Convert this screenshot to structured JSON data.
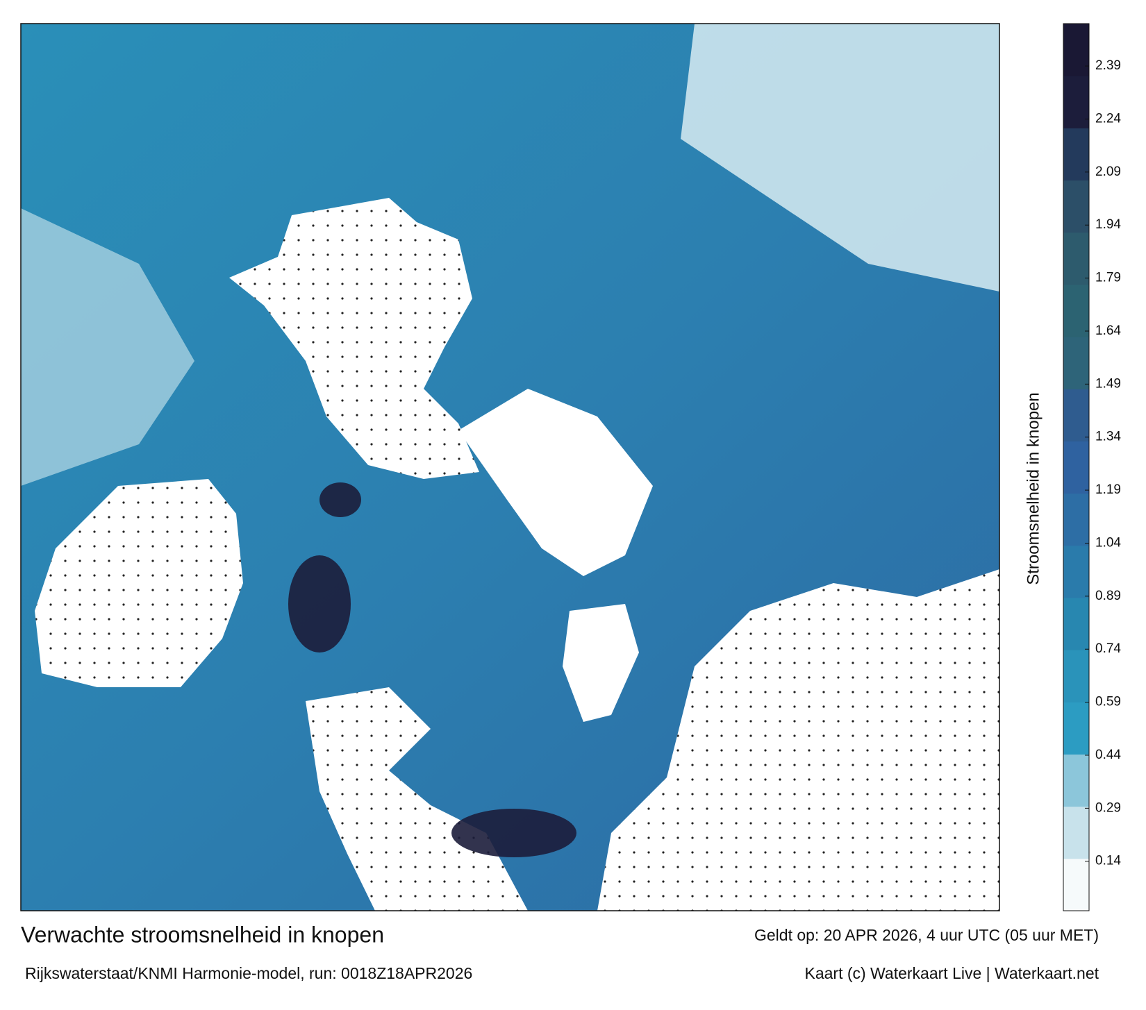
{
  "map": {
    "title": "Verwachte stroomsnelheid in knopen",
    "subtitle": "Rijkswaterstaat/KNMI Harmonie-model, run: 0018Z18APR2026",
    "valid_time": "Geldt op: 20 APR 2026, 4 uur UTC (05 uur MET)",
    "credit": "Kaart (c) Waterkaart Live | Waterkaart.net",
    "colorbar": {
      "label": "Stroomsnelheid in knopen",
      "lim": [
        0,
        2.51
      ],
      "ticks": [
        0.14,
        0.29,
        0.44,
        0.59,
        0.74,
        0.89,
        1.04,
        1.19,
        1.34,
        1.49,
        1.64,
        1.79,
        1.94,
        2.09,
        2.24,
        2.39
      ],
      "colors": [
        "#f6fafb",
        "#c8e2eb",
        "#8cc6da",
        "#2c9cc2",
        "#2a93ba",
        "#2887b0",
        "#2a7bab",
        "#2d6ea5",
        "#2f62a0",
        "#2f5c8f",
        "#2e6479",
        "#2c6372",
        "#2d5b6d",
        "#2c4f68",
        "#233a5c",
        "#1c1d3b",
        "#1a1834"
      ]
    }
  }
}
